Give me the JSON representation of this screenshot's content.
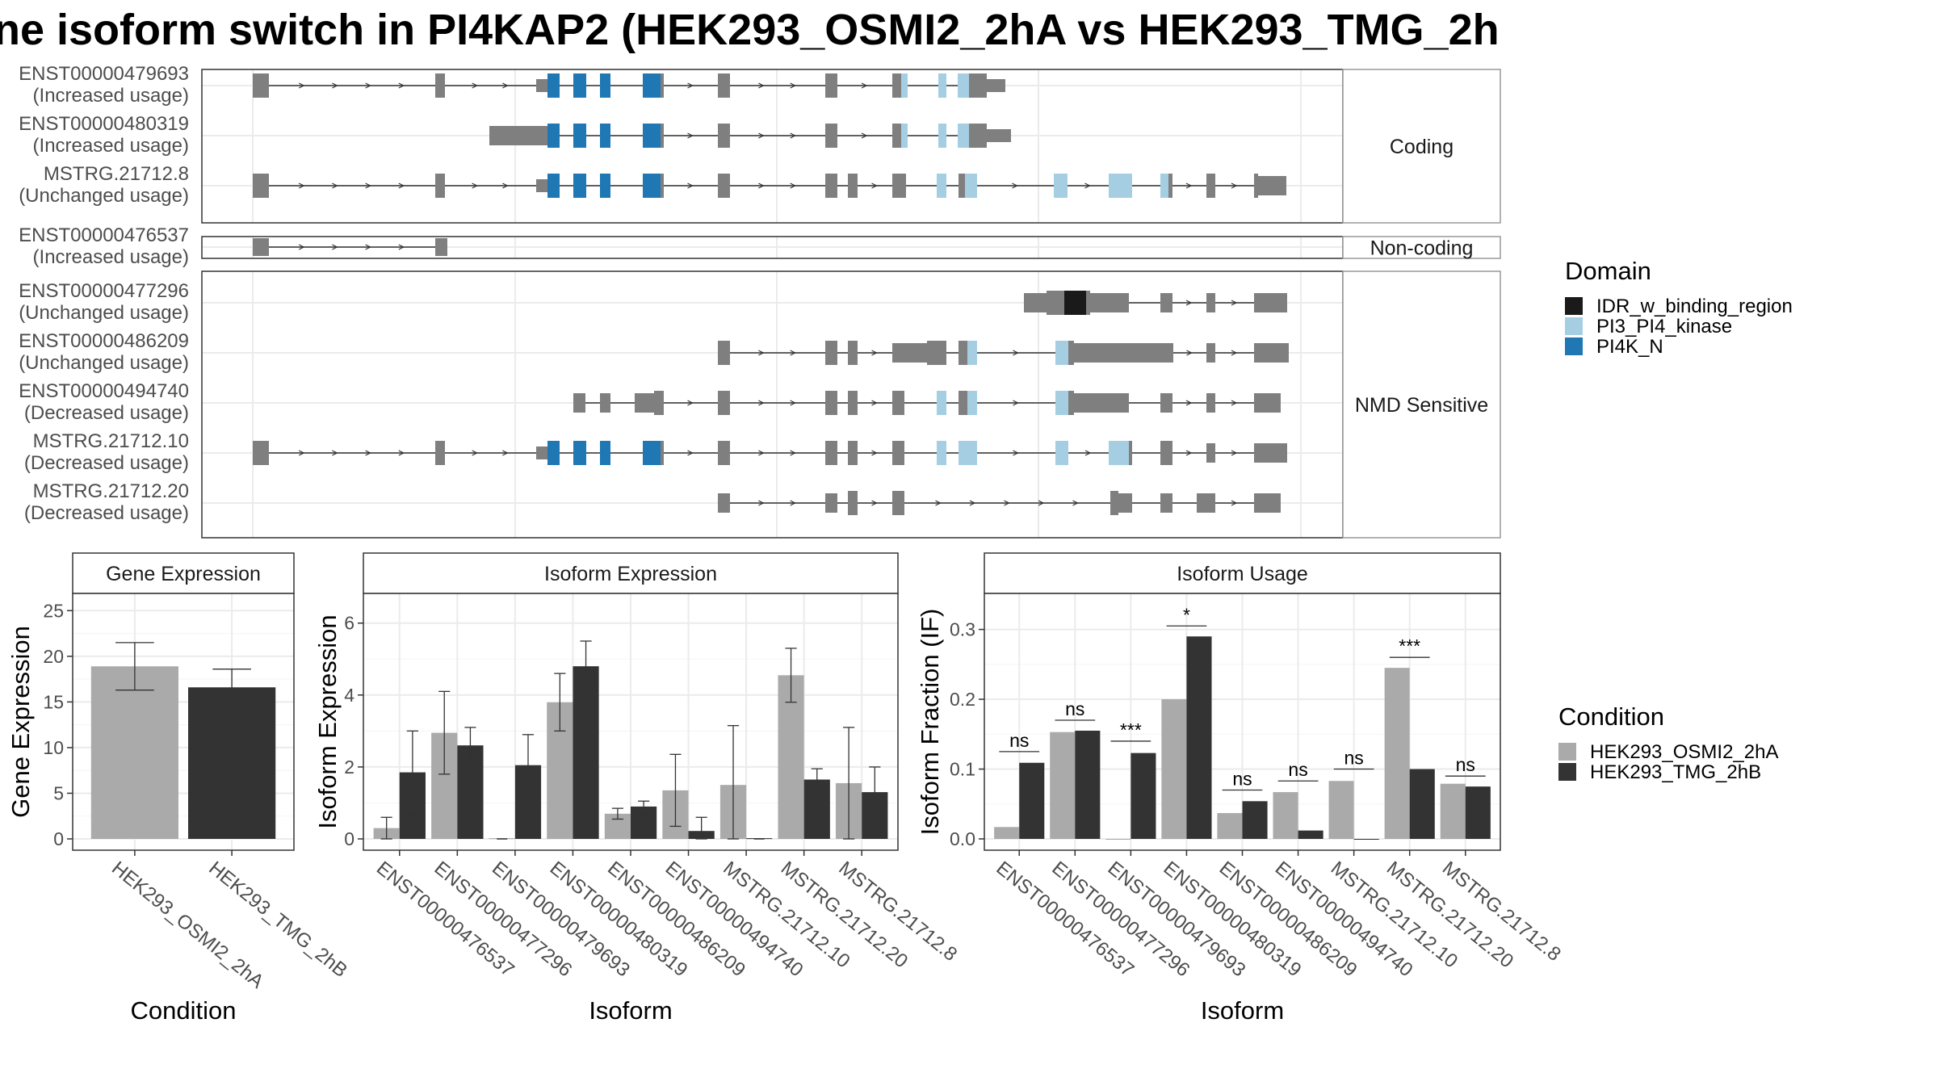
{
  "title": "ne isoform switch in PI4KAP2 (HEK293_OSMI2_2hA vs HEK293_TMG_2h",
  "colors": {
    "exon": "#7F7F7F",
    "PI4K_N": "#1F78B4",
    "PI3_PI4_kinase": "#A6CEE3",
    "IDR_w_binding_region": "#1A1A1A",
    "HEK293_OSMI2_2hA": "#AAAAAA",
    "HEK293_TMG_2hB": "#333333"
  },
  "isoform_structure": {
    "panels": [
      {
        "label": "Coding",
        "isoforms": [
          {
            "id": "ENST00000479693",
            "usage": "(Increased usage)"
          },
          {
            "id": "ENST00000480319",
            "usage": "(Increased usage)"
          },
          {
            "id": "MSTRG.21712.8",
            "usage": "(Unchanged usage)"
          }
        ]
      },
      {
        "label": "Non-coding",
        "isoforms": [
          {
            "id": "ENST00000476537",
            "usage": "(Increased usage)"
          }
        ]
      },
      {
        "label": "NMD Sensitive",
        "isoforms": [
          {
            "id": "ENST00000477296",
            "usage": "(Unchanged usage)"
          },
          {
            "id": "ENST00000486209",
            "usage": "(Unchanged usage)"
          },
          {
            "id": "ENST00000494740",
            "usage": "(Decreased usage)"
          },
          {
            "id": "MSTRG.21712.10",
            "usage": "(Decreased usage)"
          },
          {
            "id": "MSTRG.21712.20",
            "usage": "(Decreased usage)"
          }
        ]
      }
    ]
  },
  "legend_domain": {
    "title": "Domain",
    "items": [
      {
        "label": "IDR_w_binding_region",
        "color": "#1A1A1A"
      },
      {
        "label": "PI3_PI4_kinase",
        "color": "#A6CEE3"
      },
      {
        "label": "PI4K_N",
        "color": "#1F78B4"
      }
    ]
  },
  "legend_condition": {
    "title": "Condition",
    "items": [
      {
        "label": "HEK293_OSMI2_2hA",
        "color": "#AAAAAA"
      },
      {
        "label": "HEK293_TMG_2hB",
        "color": "#333333"
      }
    ]
  },
  "chart_data": [
    {
      "type": "bar",
      "title": "Gene Expression",
      "xlabel": "Condition",
      "ylabel": "Gene Expression",
      "ylim": [
        0,
        26
      ],
      "yticks": [
        0,
        5,
        10,
        15,
        20,
        25
      ],
      "categories": [
        "HEK293_OSMI2_2hA",
        "HEK293_TMG_2hB"
      ],
      "values": [
        18.9,
        16.6
      ],
      "errors": [
        [
          16.3,
          21.5
        ],
        [
          14.6,
          18.6
        ]
      ]
    },
    {
      "type": "bar",
      "title": "Isoform Expression",
      "xlabel": "Isoform",
      "ylabel": "Isoform Expression",
      "ylim": [
        0,
        6.6
      ],
      "yticks": [
        0,
        2,
        4,
        6
      ],
      "categories": [
        "ENST00000476537",
        "ENST00000477296",
        "ENST00000479693",
        "ENST00000480319",
        "ENST00000486209",
        "ENST00000494740",
        "MSTRG.21712.10",
        "MSTRG.21712.20",
        "MSTRG.21712.8"
      ],
      "series": [
        {
          "name": "HEK293_OSMI2_2hA",
          "values": [
            0.3,
            2.95,
            0.02,
            3.8,
            0.7,
            1.35,
            1.5,
            4.55,
            1.55
          ],
          "errors": [
            [
              0,
              0.6
            ],
            [
              1.8,
              4.1
            ],
            null,
            [
              3.0,
              4.6
            ],
            [
              0.55,
              0.85
            ],
            [
              0.35,
              2.35
            ],
            [
              0,
              3.15
            ],
            [
              3.8,
              5.3
            ],
            [
              0,
              3.1
            ]
          ]
        },
        {
          "name": "HEK293_TMG_2hB",
          "values": [
            1.85,
            2.6,
            2.05,
            4.8,
            0.9,
            0.22,
            0.02,
            1.65,
            1.3
          ],
          "errors": [
            [
              0.7,
              3.0
            ],
            [
              2.1,
              3.1
            ],
            [
              1.2,
              2.9
            ],
            [
              4.1,
              5.5
            ],
            [
              0.7,
              1.05
            ],
            [
              0,
              0.6
            ],
            null,
            [
              1.35,
              1.95
            ],
            [
              0.6,
              2.0
            ]
          ]
        }
      ]
    },
    {
      "type": "bar",
      "title": "Isoform Usage",
      "xlabel": "Isoform",
      "ylabel": "Isoform Fraction (IF)",
      "ylim": [
        0,
        0.34
      ],
      "yticks": [
        0.0,
        0.1,
        0.2,
        0.3
      ],
      "categories": [
        "ENST00000476537",
        "ENST00000477296",
        "ENST00000479693",
        "ENST00000480319",
        "ENST00000486209",
        "ENST00000494740",
        "MSTRG.21712.10",
        "MSTRG.21712.20",
        "MSTRG.21712.8"
      ],
      "series": [
        {
          "name": "HEK293_OSMI2_2hA",
          "values": [
            0.017,
            0.153,
            0.0,
            0.2,
            0.037,
            0.067,
            0.083,
            0.245,
            0.079
          ]
        },
        {
          "name": "HEK293_TMG_2hB",
          "values": [
            0.109,
            0.155,
            0.123,
            0.29,
            0.054,
            0.012,
            0.0,
            0.1,
            0.075
          ]
        }
      ],
      "significance": [
        "ns",
        "ns",
        "***",
        "*",
        "ns",
        "ns",
        "ns",
        "***",
        "ns"
      ],
      "significance_y": [
        0.125,
        0.17,
        0.14,
        0.305,
        0.07,
        0.083,
        0.1,
        0.26,
        0.09
      ]
    }
  ]
}
